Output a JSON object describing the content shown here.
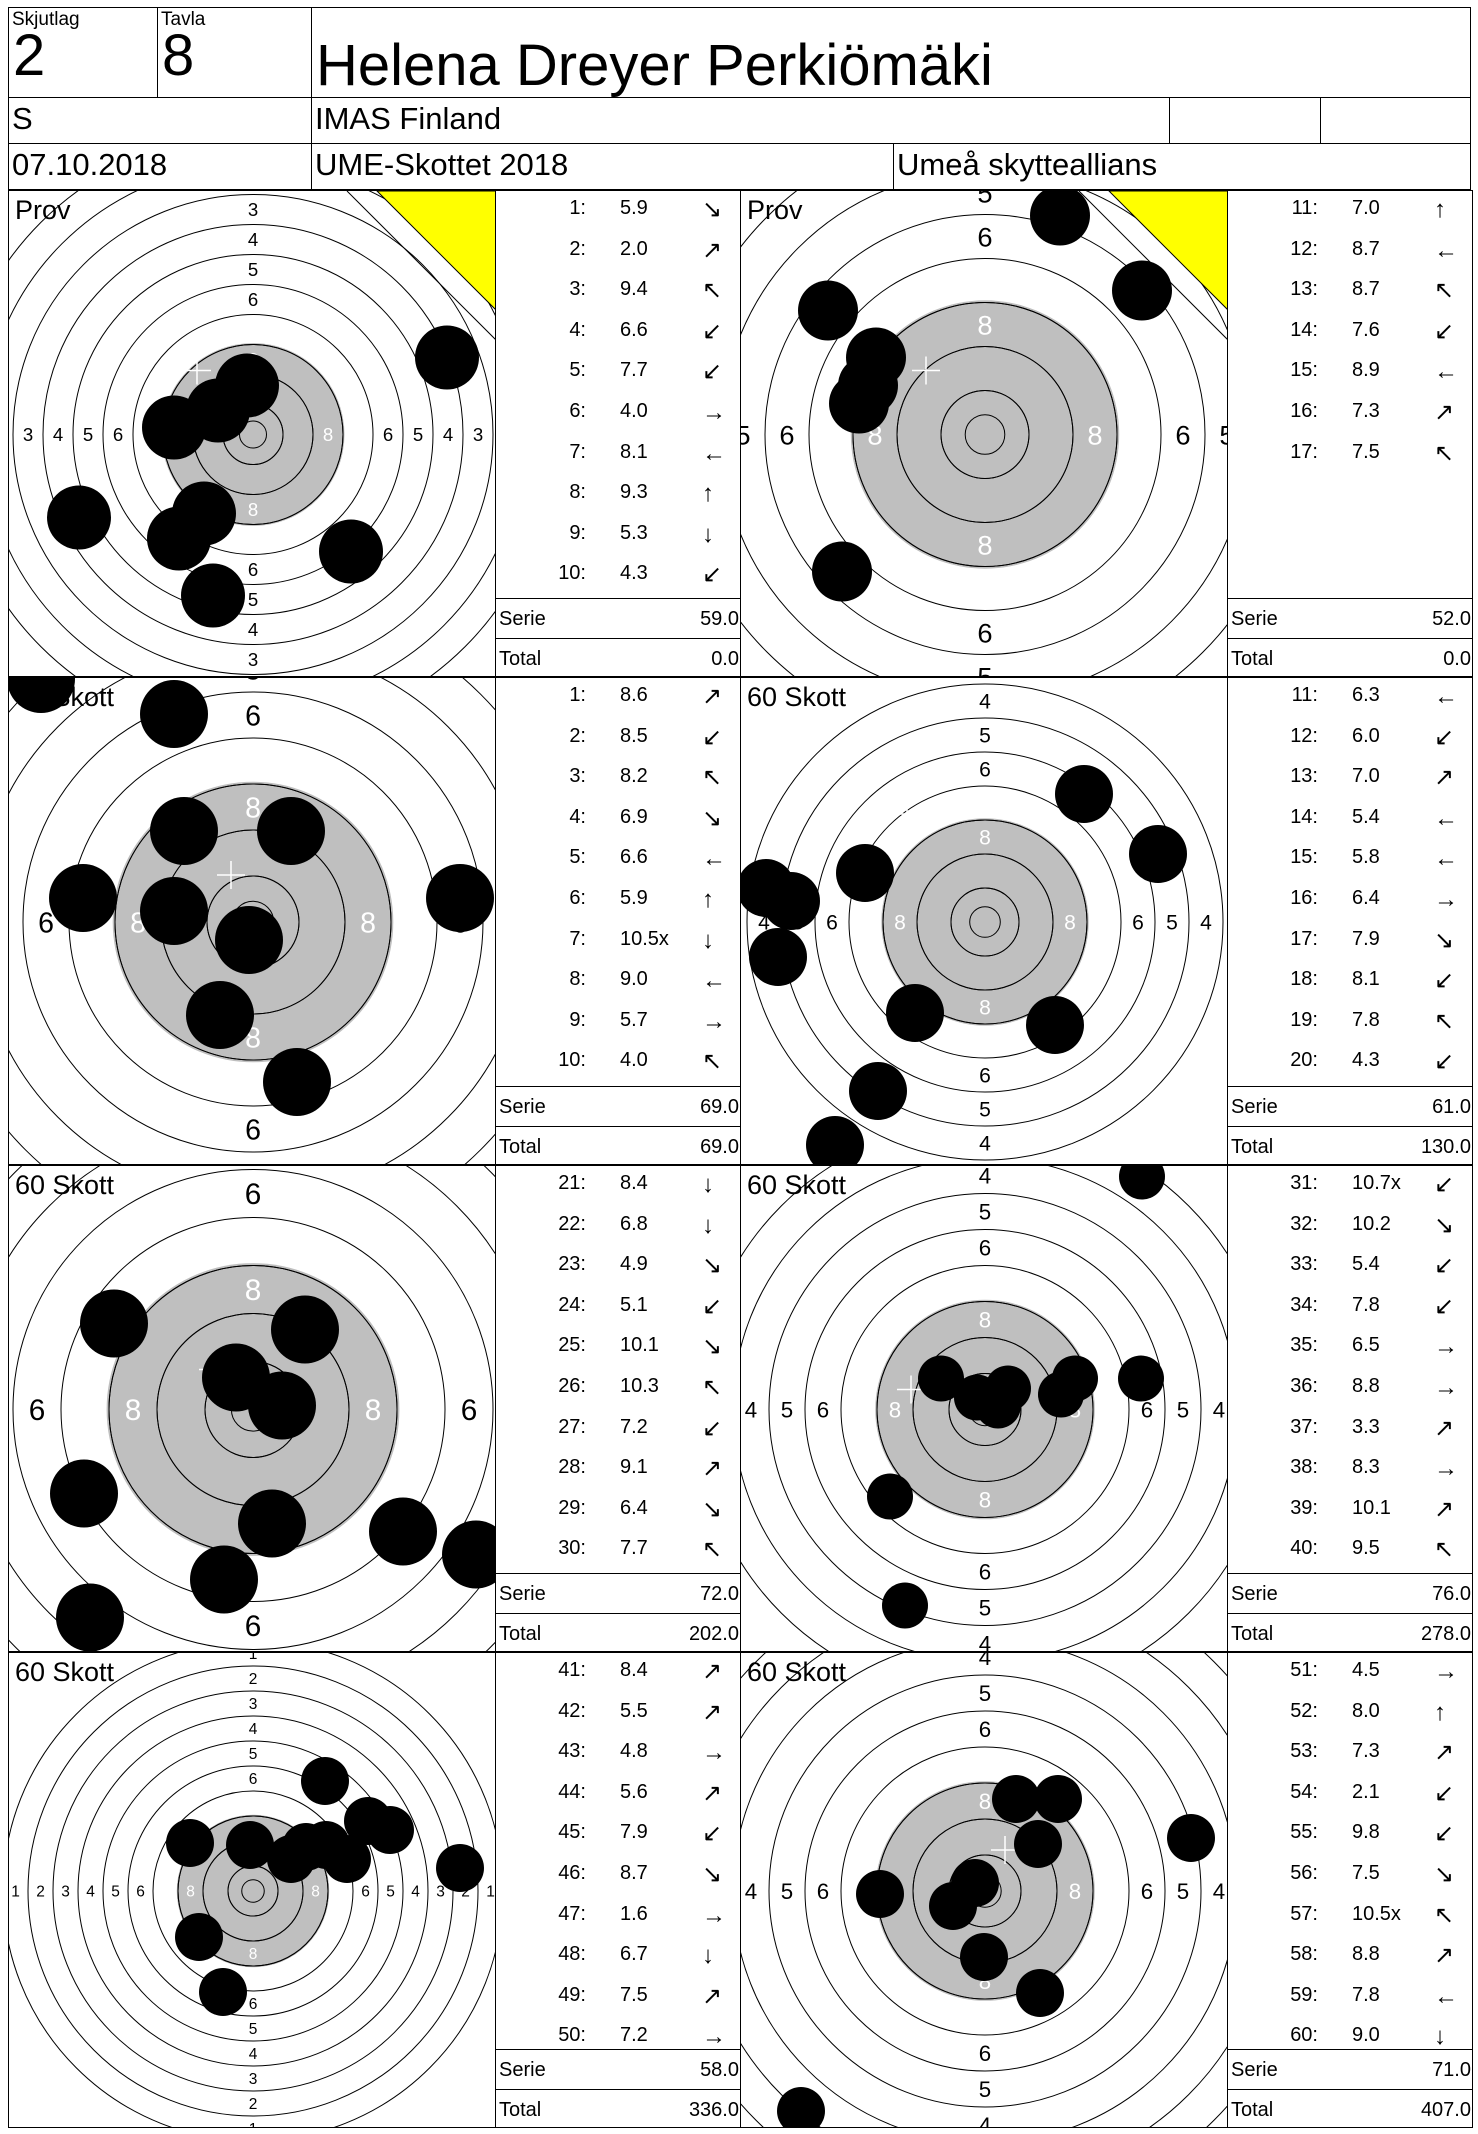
{
  "header": {
    "skjutlag_label": "Skjutlag",
    "skjutlag": "2",
    "tavla_label": "Tavla",
    "tavla": "8",
    "name": "Helena Dreyer Perkiömäki",
    "class": "S",
    "club": "IMAS Finland",
    "date": "07.10.2018",
    "competition": "UME-Skottet 2018",
    "organizer": "Umeå skytteallians"
  },
  "colors": {
    "gray_zone": "#bfbfbf",
    "corner_flag": "#ffff00"
  },
  "labels": {
    "serie": "Serie",
    "total": "Total"
  },
  "panels": [
    {
      "title": "Prov",
      "flag": true,
      "serie": "59.0",
      "total": "0.0",
      "shots": [
        {
          "no": "1:",
          "score": "5.9",
          "dir": "↘"
        },
        {
          "no": "2:",
          "score": "2.0",
          "dir": "↗"
        },
        {
          "no": "3:",
          "score": "9.4",
          "dir": "↖"
        },
        {
          "no": "4:",
          "score": "6.6",
          "dir": "↙"
        },
        {
          "no": "5:",
          "score": "7.7",
          "dir": "↙"
        },
        {
          "no": "6:",
          "score": "4.0",
          "dir": "→"
        },
        {
          "no": "7:",
          "score": "8.1",
          "dir": "←"
        },
        {
          "no": "8:",
          "score": "9.3",
          "dir": "↑"
        },
        {
          "no": "9:",
          "score": "5.3",
          "dir": "↓"
        },
        {
          "no": "10:",
          "score": "4.3",
          "dir": "↙"
        }
      ]
    },
    {
      "title": "Prov",
      "flag": true,
      "serie": "52.0",
      "total": "0.0",
      "shots": [
        {
          "no": "11:",
          "score": "7.0",
          "dir": "↑"
        },
        {
          "no": "12:",
          "score": "8.7",
          "dir": "←"
        },
        {
          "no": "13:",
          "score": "8.7",
          "dir": "↖"
        },
        {
          "no": "14:",
          "score": "7.6",
          "dir": "↙"
        },
        {
          "no": "15:",
          "score": "8.9",
          "dir": "←"
        },
        {
          "no": "16:",
          "score": "7.3",
          "dir": "↗"
        },
        {
          "no": "17:",
          "score": "7.5",
          "dir": "↖"
        }
      ]
    },
    {
      "title": "60 Skott",
      "flag": false,
      "serie": "69.0",
      "total": "69.0",
      "shots": [
        {
          "no": "1:",
          "score": "8.6",
          "dir": "↗"
        },
        {
          "no": "2:",
          "score": "8.5",
          "dir": "↙"
        },
        {
          "no": "3:",
          "score": "8.2",
          "dir": "↖"
        },
        {
          "no": "4:",
          "score": "6.9",
          "dir": "↘"
        },
        {
          "no": "5:",
          "score": "6.6",
          "dir": "←"
        },
        {
          "no": "6:",
          "score": "5.9",
          "dir": "↑"
        },
        {
          "no": "7:",
          "score": "10.5x",
          "dir": "↓"
        },
        {
          "no": "8:",
          "score": "9.0",
          "dir": "←"
        },
        {
          "no": "9:",
          "score": "5.7",
          "dir": "→"
        },
        {
          "no": "10:",
          "score": "4.0",
          "dir": "↖"
        }
      ]
    },
    {
      "title": "60 Skott",
      "flag": false,
      "serie": "61.0",
      "total": "130.0",
      "shots": [
        {
          "no": "11:",
          "score": "6.3",
          "dir": "←"
        },
        {
          "no": "12:",
          "score": "6.0",
          "dir": "↙"
        },
        {
          "no": "13:",
          "score": "7.0",
          "dir": "↗"
        },
        {
          "no": "14:",
          "score": "5.4",
          "dir": "←"
        },
        {
          "no": "15:",
          "score": "5.8",
          "dir": "←"
        },
        {
          "no": "16:",
          "score": "6.4",
          "dir": "→"
        },
        {
          "no": "17:",
          "score": "7.9",
          "dir": "↘"
        },
        {
          "no": "18:",
          "score": "8.1",
          "dir": "↙"
        },
        {
          "no": "19:",
          "score": "7.8",
          "dir": "↖"
        },
        {
          "no": "20:",
          "score": "4.3",
          "dir": "↙"
        }
      ]
    },
    {
      "title": "60 Skott",
      "flag": false,
      "serie": "72.0",
      "total": "202.0",
      "shots": [
        {
          "no": "21:",
          "score": "8.4",
          "dir": "↓"
        },
        {
          "no": "22:",
          "score": "6.8",
          "dir": "↓"
        },
        {
          "no": "23:",
          "score": "4.9",
          "dir": "↘"
        },
        {
          "no": "24:",
          "score": "5.1",
          "dir": "↙"
        },
        {
          "no": "25:",
          "score": "10.1",
          "dir": "↘"
        },
        {
          "no": "26:",
          "score": "10.3",
          "dir": "↖"
        },
        {
          "no": "27:",
          "score": "7.2",
          "dir": "↙"
        },
        {
          "no": "28:",
          "score": "9.1",
          "dir": "↗"
        },
        {
          "no": "29:",
          "score": "6.4",
          "dir": "↘"
        },
        {
          "no": "30:",
          "score": "7.7",
          "dir": "↖"
        }
      ]
    },
    {
      "title": "60 Skott",
      "flag": false,
      "serie": "76.0",
      "total": "278.0",
      "shots": [
        {
          "no": "31:",
          "score": "10.7x",
          "dir": "↙"
        },
        {
          "no": "32:",
          "score": "10.2",
          "dir": "↘"
        },
        {
          "no": "33:",
          "score": "5.4",
          "dir": "↙"
        },
        {
          "no": "34:",
          "score": "7.8",
          "dir": "↙"
        },
        {
          "no": "35:",
          "score": "6.5",
          "dir": "→"
        },
        {
          "no": "36:",
          "score": "8.8",
          "dir": "→"
        },
        {
          "no": "37:",
          "score": "3.3",
          "dir": "↗"
        },
        {
          "no": "38:",
          "score": "8.3",
          "dir": "→"
        },
        {
          "no": "39:",
          "score": "10.1",
          "dir": "↗"
        },
        {
          "no": "40:",
          "score": "9.5",
          "dir": "↖"
        }
      ]
    },
    {
      "title": "60 Skott",
      "flag": false,
      "serie": "58.0",
      "total": "336.0",
      "shots": [
        {
          "no": "41:",
          "score": "8.4",
          "dir": "↗"
        },
        {
          "no": "42:",
          "score": "5.5",
          "dir": "↗"
        },
        {
          "no": "43:",
          "score": "4.8",
          "dir": "→"
        },
        {
          "no": "44:",
          "score": "5.6",
          "dir": "↗"
        },
        {
          "no": "45:",
          "score": "7.9",
          "dir": "↙"
        },
        {
          "no": "46:",
          "score": "8.7",
          "dir": "↘"
        },
        {
          "no": "47:",
          "score": "1.6",
          "dir": "→"
        },
        {
          "no": "48:",
          "score": "6.7",
          "dir": "↓"
        },
        {
          "no": "49:",
          "score": "7.5",
          "dir": "↗"
        },
        {
          "no": "50:",
          "score": "7.2",
          "dir": "→"
        }
      ]
    },
    {
      "title": "60 Skott",
      "flag": false,
      "serie": "71.0",
      "total": "407.0",
      "shots": [
        {
          "no": "51:",
          "score": "4.5",
          "dir": "→"
        },
        {
          "no": "52:",
          "score": "8.0",
          "dir": "↑"
        },
        {
          "no": "53:",
          "score": "7.3",
          "dir": "↗"
        },
        {
          "no": "54:",
          "score": "2.1",
          "dir": "↙"
        },
        {
          "no": "55:",
          "score": "9.8",
          "dir": "↙"
        },
        {
          "no": "56:",
          "score": "7.5",
          "dir": "↘"
        },
        {
          "no": "57:",
          "score": "10.5x",
          "dir": "↖"
        },
        {
          "no": "58:",
          "score": "8.8",
          "dir": "↗"
        },
        {
          "no": "59:",
          "score": "7.8",
          "dir": "←"
        },
        {
          "no": "60:",
          "score": "9.0",
          "dir": "↓"
        }
      ]
    }
  ]
}
